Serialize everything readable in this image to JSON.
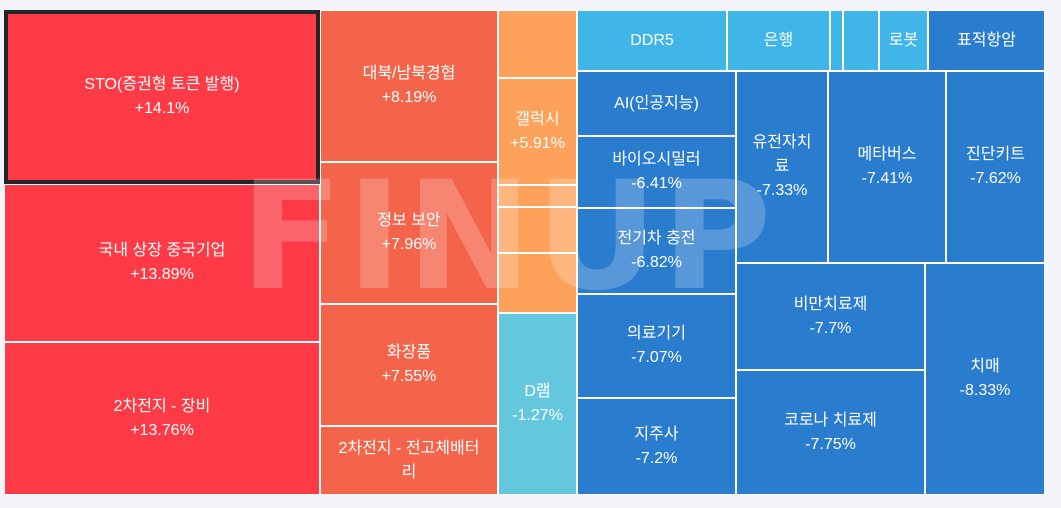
{
  "chart_data": {
    "type": "treemap",
    "colors": {
      "strong_up": "#fd3a45",
      "up": "#f4644b",
      "mild_up": "#fea15a",
      "down": "#63c8de",
      "mid_down": "#40b6e8",
      "strong_down": "#2a7ccf"
    },
    "items": [
      {
        "name": "STO(증권형 토큰 발행)",
        "change": "+14.1%",
        "value": 14.1,
        "selected": true
      },
      {
        "name": "국내 상장 중국기업",
        "change": "+13.89%",
        "value": 13.89
      },
      {
        "name": "2차전지 - 장비",
        "change": "+13.76%",
        "value": 13.76
      },
      {
        "name": "대북/남북경협",
        "change": "+8.19%",
        "value": 8.19
      },
      {
        "name": "정보 보안",
        "change": "+7.96%",
        "value": 7.96
      },
      {
        "name": "화장품",
        "change": "+7.55%",
        "value": 7.55
      },
      {
        "name": "2차전지 - 전고체배터리",
        "change": "",
        "value": null
      },
      {
        "name": "",
        "change": "",
        "value": null
      },
      {
        "name": "갤럭시",
        "change": "+5.91%",
        "value": 5.91
      },
      {
        "name": "",
        "change": "",
        "value": null
      },
      {
        "name": "",
        "change": "",
        "value": null
      },
      {
        "name": "",
        "change": "",
        "value": null
      },
      {
        "name": "D램",
        "change": "-1.27%",
        "value": -1.27
      },
      {
        "name": "DDR5",
        "change": "",
        "value": null
      },
      {
        "name": "은행",
        "change": "",
        "value": null
      },
      {
        "name": "",
        "change": "",
        "value": null
      },
      {
        "name": "",
        "change": "",
        "value": null
      },
      {
        "name": "로봇",
        "change": "",
        "value": null
      },
      {
        "name": "표적항암",
        "change": "",
        "value": null
      },
      {
        "name": "AI(인공지능)",
        "change": "",
        "value": null
      },
      {
        "name": "바이오시밀러",
        "change": "-6.41%",
        "value": -6.41
      },
      {
        "name": "전기차 충전",
        "change": "-6.82%",
        "value": -6.82
      },
      {
        "name": "의료기기",
        "change": "-7.07%",
        "value": -7.07
      },
      {
        "name": "지주사",
        "change": "-7.2%",
        "value": -7.2
      },
      {
        "name": "유전자치료",
        "change": "-7.33%",
        "value": -7.33
      },
      {
        "name": "메타버스",
        "change": "-7.41%",
        "value": -7.41
      },
      {
        "name": "진단키트",
        "change": "-7.62%",
        "value": -7.62
      },
      {
        "name": "비만치료제",
        "change": "-7.7%",
        "value": -7.7
      },
      {
        "name": "코로나 치료제",
        "change": "-7.75%",
        "value": -7.75
      },
      {
        "name": "치매",
        "change": "-8.33%",
        "value": -8.33
      }
    ]
  },
  "watermark": "FINUP"
}
